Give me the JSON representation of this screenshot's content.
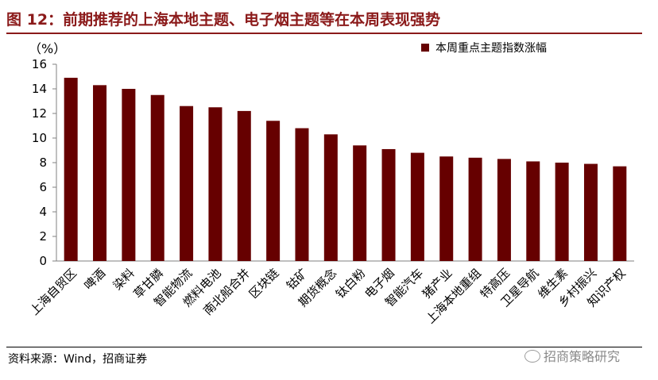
{
  "title": "图 12：前期推荐的上海本地主题、电子烟主题等在本周表现强势",
  "source": "资料来源：Wind，招商证券",
  "watermark": "招商策略研究",
  "watermark_icon": "wechat-icon",
  "colors": {
    "bar": "#660000",
    "accent": "#8b1a1a",
    "axis": "#808080"
  },
  "chart_data": {
    "type": "bar",
    "title": "",
    "ylabel": "（%）",
    "xlabel": "",
    "ylim": [
      0,
      16
    ],
    "yticks": [
      0,
      2,
      4,
      6,
      8,
      10,
      12,
      14,
      16
    ],
    "grid": false,
    "legend_position": "top-right",
    "categories": [
      "上海自贸区",
      "啤酒",
      "染料",
      "草甘膦",
      "智能物流",
      "燃料电池",
      "南北船合并",
      "区块链",
      "钴矿",
      "期货概念",
      "钛白粉",
      "电子烟",
      "智能汽车",
      "猪产业",
      "上海本地重组",
      "特高压",
      "卫星导航",
      "维生素",
      "乡村振兴",
      "知识产权"
    ],
    "series": [
      {
        "name": "本周重点主题指数涨幅",
        "values": [
          14.9,
          14.3,
          14.0,
          13.5,
          12.6,
          12.5,
          12.2,
          11.4,
          10.8,
          10.3,
          9.4,
          9.1,
          8.8,
          8.5,
          8.4,
          8.3,
          8.1,
          8.0,
          7.9,
          7.7
        ]
      }
    ]
  }
}
